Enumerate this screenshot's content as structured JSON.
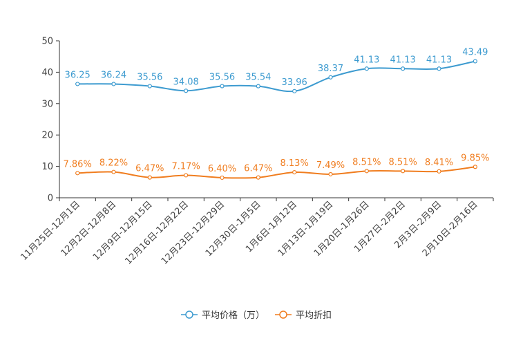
{
  "chart_data": {
    "type": "line",
    "title": "",
    "xlabel": "",
    "ylabel": "",
    "ylim": [
      0,
      50
    ],
    "yticks": [
      0,
      10,
      20,
      30,
      40,
      50
    ],
    "grid": false,
    "legend_position": "bottom-center",
    "categories": [
      "11月25日-12月1日",
      "12月2日-12月8日",
      "12月9日-12月15日",
      "12月16日-12月22日",
      "12月23日-12月29日",
      "12月30日-1月5日",
      "1月6日-1月12日",
      "1月13日-1月19日",
      "1月20日-1月26日",
      "1月27日-2月2日",
      "2月3日-2月9日",
      "2月10日-2月16日"
    ],
    "series": [
      {
        "name": "平均价格（万）",
        "color": "#3d9bd0",
        "values": [
          36.25,
          36.24,
          35.56,
          34.08,
          35.56,
          35.54,
          33.96,
          38.37,
          41.13,
          41.13,
          41.13,
          43.49
        ],
        "labels": [
          "36.25",
          "36.24",
          "35.56",
          "34.08",
          "35.56",
          "35.54",
          "33.96",
          "38.37",
          "41.13",
          "41.13",
          "41.13",
          "43.49"
        ]
      },
      {
        "name": "平均折扣",
        "color": "#f07d1f",
        "values": [
          7.86,
          8.22,
          6.47,
          7.17,
          6.4,
          6.47,
          8.13,
          7.49,
          8.51,
          8.51,
          8.41,
          9.85
        ],
        "labels": [
          "7.86%",
          "8.22%",
          "6.47%",
          "7.17%",
          "6.40%",
          "6.47%",
          "8.13%",
          "7.49%",
          "8.51%",
          "8.51%",
          "8.41%",
          "9.85%"
        ]
      }
    ]
  }
}
